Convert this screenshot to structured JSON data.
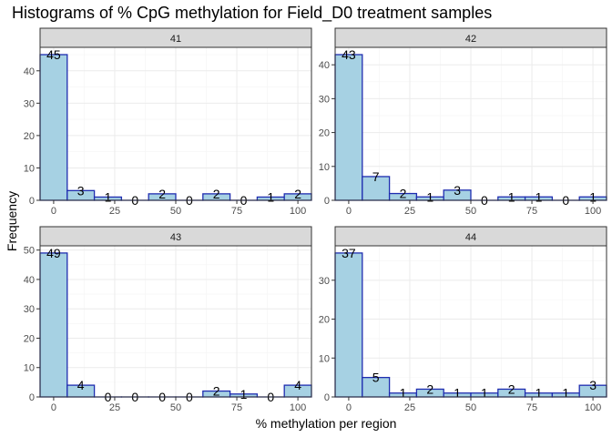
{
  "chart_data": {
    "type": "bar",
    "title": "Histograms of % CpG methylation for Field_D0 treatment samples",
    "xlabel": "% methylation per region",
    "ylabel": "Frequency",
    "colors": {
      "fill": "#a6d1e3",
      "stroke": "#1f2db0"
    },
    "bins": [
      0,
      11.11,
      22.22,
      33.33,
      44.44,
      55.56,
      66.67,
      77.78,
      88.89,
      100
    ],
    "bin_width": 11.11,
    "xlim": [
      -5.56,
      105.56
    ],
    "x_ticks": [
      0,
      25,
      50,
      75,
      100
    ],
    "x_tick_labels": [
      "0",
      "25",
      "50",
      "75",
      "100"
    ],
    "panels": [
      {
        "strip": "41",
        "values": [
          45,
          3,
          1,
          0,
          2,
          0,
          2,
          0,
          1,
          2
        ],
        "labels": [
          "45",
          "3",
          "1",
          "0",
          "2",
          "0",
          "2",
          "0",
          "1",
          "2"
        ],
        "ylim": [
          0,
          47.25
        ],
        "y_ticks": [
          0,
          10,
          20,
          30,
          40
        ],
        "y_tick_labels": [
          "0",
          "10",
          "20",
          "30",
          "40"
        ]
      },
      {
        "strip": "42",
        "values": [
          43,
          7,
          2,
          1,
          3,
          0,
          1,
          1,
          0,
          1
        ],
        "labels": [
          "43",
          "7",
          "2",
          "1",
          "3",
          "0",
          "1",
          "1",
          "0",
          "1"
        ],
        "ylim": [
          0,
          45.15
        ],
        "y_ticks": [
          0,
          10,
          20,
          30,
          40
        ],
        "y_tick_labels": [
          "0",
          "10",
          "20",
          "30",
          "40"
        ]
      },
      {
        "strip": "43",
        "values": [
          49,
          4,
          0,
          0,
          0,
          0,
          2,
          1,
          0,
          4
        ],
        "labels": [
          "49",
          "4",
          "0",
          "0",
          "0",
          "0",
          "2",
          "1",
          "0",
          "4"
        ],
        "ylim": [
          0,
          51.45
        ],
        "y_ticks": [
          0,
          10,
          20,
          30,
          40,
          50
        ],
        "y_tick_labels": [
          "0",
          "10",
          "20",
          "30",
          "40",
          "50"
        ]
      },
      {
        "strip": "44",
        "values": [
          37,
          5,
          1,
          2,
          1,
          1,
          2,
          1,
          1,
          3
        ],
        "labels": [
          "37",
          "5",
          "1",
          "2",
          "1",
          "1",
          "2",
          "1",
          "1",
          "3"
        ],
        "ylim": [
          0,
          38.85
        ],
        "y_ticks": [
          0,
          10,
          20,
          30
        ],
        "y_tick_labels": [
          "0",
          "10",
          "20",
          "30"
        ]
      }
    ]
  }
}
